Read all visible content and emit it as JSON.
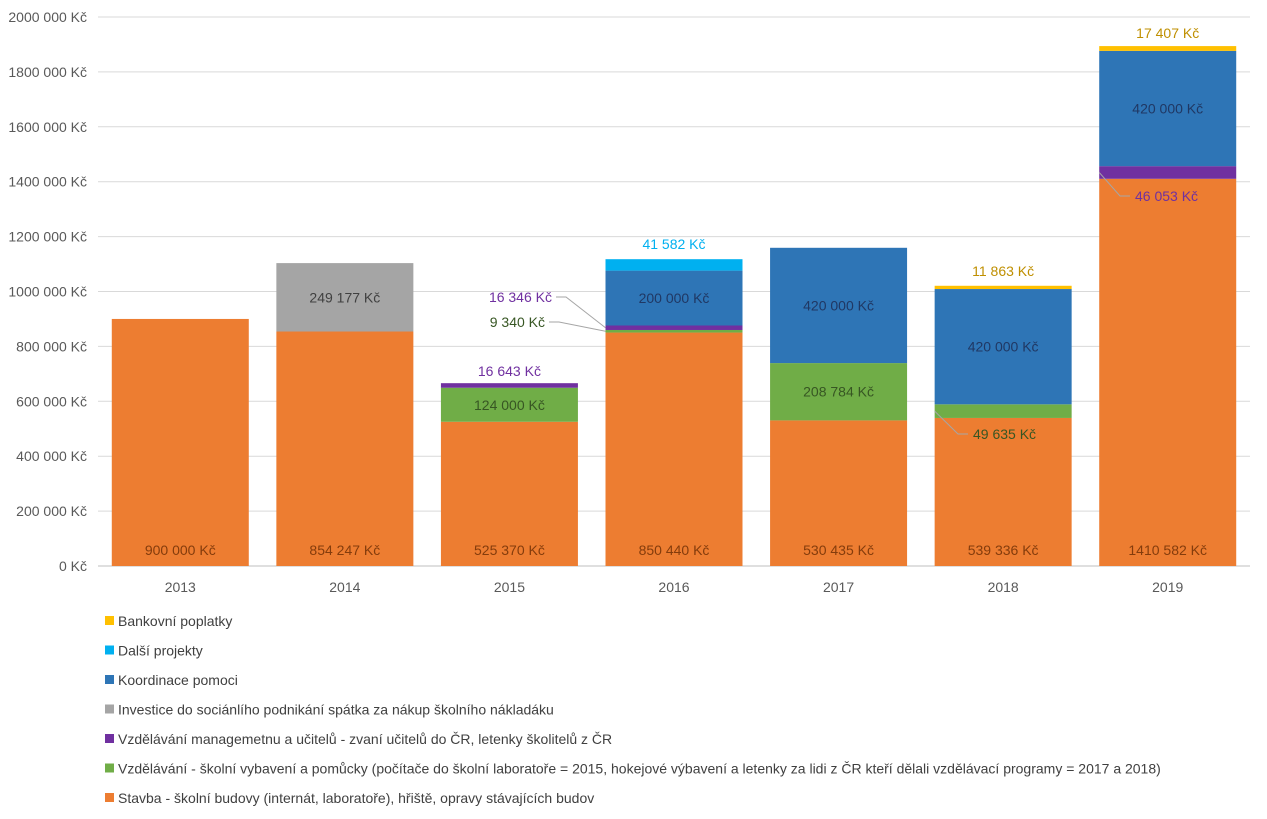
{
  "chart_data": {
    "type": "bar",
    "stacked": true,
    "title": "",
    "xlabel": "",
    "ylabel": "",
    "ylim": [
      0,
      2000000
    ],
    "y_ticks": [
      0,
      200000,
      400000,
      600000,
      800000,
      1000000,
      1200000,
      1400000,
      1600000,
      1800000,
      2000000
    ],
    "y_tick_labels": [
      "0 Kč",
      "200 000 Kč",
      "400 000 Kč",
      "600 000 Kč",
      "800 000 Kč",
      "1000 000 Kč",
      "1200 000 Kč",
      "1400 000 Kč",
      "1600 000 Kč",
      "1800 000 Kč",
      "2000 000 Kč"
    ],
    "grid": true,
    "legend_position": "bottom",
    "categories": [
      "2013",
      "2014",
      "2015",
      "2016",
      "2017",
      "2018",
      "2019"
    ],
    "series": [
      {
        "name": "Stavba - školní budovy (internát, laboratoře), hřiště, opravy stávajících budov",
        "color": "#ED7D31",
        "label_color": "#843C0C",
        "values": [
          900000,
          854247,
          525370,
          850440,
          530435,
          539336,
          1410582
        ],
        "labels": [
          "900 000 Kč",
          "854 247 Kč",
          "525 370 Kč",
          "850 440 Kč",
          "530 435 Kč",
          "539 336 Kč",
          "1410 582 Kč"
        ]
      },
      {
        "name": "Vzdělávání - školní vybavení a pomůcky (počítače do školní laboratoře = 2015, hokejové výbavení a letenky za lidi z ČR kteří dělali vzdělávací programy = 2017 a 2018)",
        "color": "#70AD47",
        "label_color": "#375623",
        "values": [
          0,
          0,
          124000,
          9340,
          208784,
          49635,
          0
        ],
        "labels": [
          "",
          "",
          "124 000 Kč",
          "9 340 Kč",
          "208 784 Kč",
          "49 635 Kč",
          ""
        ]
      },
      {
        "name": "Vzdělávání managemetnu a učitelů -  zvaní učitelů do ČR, letenky školitelů z ČR",
        "color": "#7030A0",
        "label_color": "#7030A0",
        "values": [
          0,
          0,
          16643,
          16346,
          0,
          0,
          46053
        ],
        "labels": [
          "",
          "",
          "16 643 Kč",
          "16 346 Kč",
          "",
          "",
          "46 053 Kč"
        ]
      },
      {
        "name": "Investice do sociánlího podnikání  spátka za nákup školního nákladáku",
        "color": "#A5A5A5",
        "label_color": "#404040",
        "values": [
          0,
          249177,
          0,
          0,
          0,
          0,
          0
        ],
        "labels": [
          "",
          "249 177 Kč",
          "",
          "",
          "",
          "",
          ""
        ]
      },
      {
        "name": "Koordinace pomoci",
        "color": "#2E75B6",
        "label_color": "#203864",
        "values": [
          0,
          0,
          0,
          200000,
          420000,
          420000,
          420000
        ],
        "labels": [
          "",
          "",
          "",
          "200 000 Kč",
          "420 000 Kč",
          "420 000 Kč",
          "420 000 Kč"
        ]
      },
      {
        "name": "Další projekty",
        "color": "#00B0F0",
        "label_color": "#00B0F0",
        "values": [
          0,
          0,
          0,
          41582,
          0,
          0,
          0
        ],
        "labels": [
          "",
          "",
          "",
          "41 582 Kč",
          "",
          "",
          ""
        ]
      },
      {
        "name": "Bankovní poplatky",
        "color": "#FFC000",
        "label_color": "#BF8F00",
        "values": [
          0,
          0,
          0,
          0,
          0,
          11863,
          17407
        ],
        "labels": [
          "",
          "",
          "",
          "",
          "",
          "11 863 Kč",
          "17 407 Kč"
        ]
      }
    ]
  }
}
